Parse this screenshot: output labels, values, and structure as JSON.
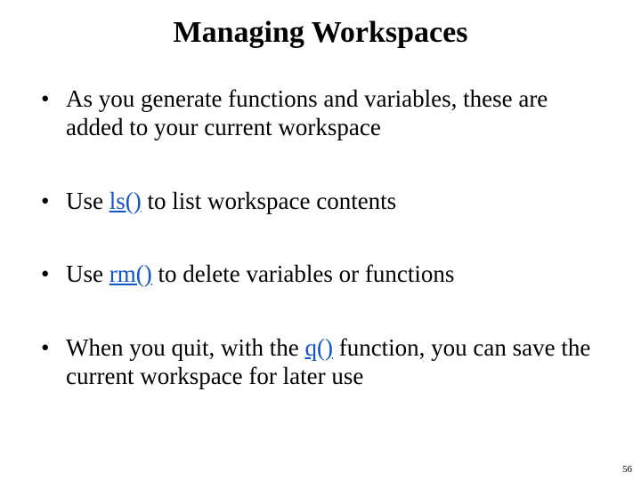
{
  "slide": {
    "title": "Managing Workspaces",
    "page_number": "56",
    "link_color": "#1155cc",
    "text_color": "#000000",
    "background_color": "#ffffff",
    "title_fontsize": 34,
    "body_fontsize": 27,
    "bullets": [
      {
        "segments": [
          {
            "text": "As you generate functions and variables, these are added to your current workspace",
            "fn": false
          }
        ]
      },
      {
        "segments": [
          {
            "text": "Use ",
            "fn": false
          },
          {
            "text": "ls()",
            "fn": true
          },
          {
            "text": " to list workspace contents",
            "fn": false
          }
        ]
      },
      {
        "segments": [
          {
            "text": "Use ",
            "fn": false
          },
          {
            "text": "rm()",
            "fn": true
          },
          {
            "text": " to delete variables or functions",
            "fn": false
          }
        ]
      },
      {
        "segments": [
          {
            "text": "When you quit, with the ",
            "fn": false
          },
          {
            "text": "q()",
            "fn": true
          },
          {
            "text": " function, you can save the current workspace for later use",
            "fn": false
          }
        ]
      }
    ]
  }
}
